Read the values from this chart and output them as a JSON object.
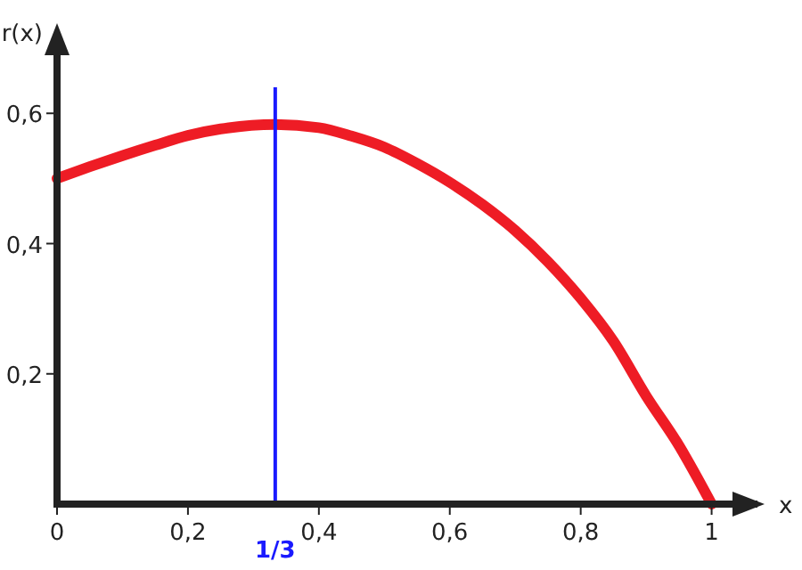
{
  "chart_data": {
    "type": "line",
    "xlabel": "x",
    "ylabel": "r(x)",
    "x": [
      0,
      0.05,
      0.1,
      0.15,
      0.2,
      0.25,
      0.3333,
      0.4,
      0.45,
      0.5,
      0.55,
      0.6,
      0.65,
      0.7,
      0.75,
      0.8,
      0.85,
      0.9,
      0.95,
      1
    ],
    "series": [
      {
        "color": "#ee1c25",
        "values": [
          0.5,
          0.518,
          0.535,
          0.551,
          0.566,
          0.576,
          0.583,
          0.578,
          0.565,
          0.548,
          0.523,
          0.494,
          0.46,
          0.42,
          0.372,
          0.316,
          0.25,
          0.166,
          0.09,
          0
        ]
      }
    ],
    "xlim": [
      0,
      1.07
    ],
    "ylim": [
      0,
      0.64
    ],
    "xticks": [
      {
        "value": 0,
        "label": "0"
      },
      {
        "value": 0.2,
        "label": "0,2"
      },
      {
        "value": 0.4,
        "label": "0,4"
      },
      {
        "value": 0.6,
        "label": "0,6"
      },
      {
        "value": 0.8,
        "label": "0,8"
      },
      1
    ],
    "yticks": [
      {
        "value": 0.2,
        "label": "0,2"
      },
      {
        "value": 0.4,
        "label": "0,4"
      },
      {
        "value": 0.6,
        "label": "0,6"
      }
    ],
    "ref_lines": [
      {
        "axis": "x",
        "value": 0.3333333333,
        "color": "#1a1aff"
      }
    ],
    "annotations": [
      "1/3"
    ],
    "grid": false,
    "line_style": "solid"
  }
}
